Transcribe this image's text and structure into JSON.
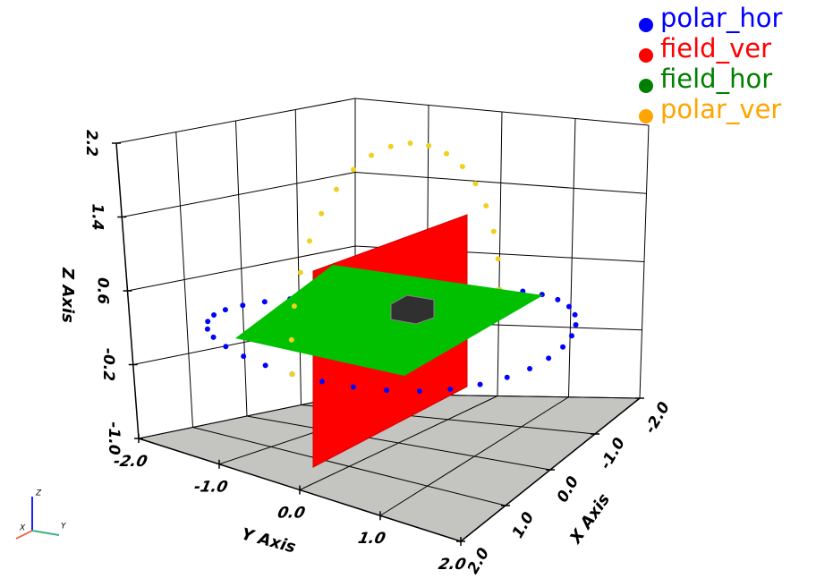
{
  "chart_data": {
    "type": "scatter3d",
    "xlabel": "X Axis",
    "ylabel": "Y Axis",
    "zlabel": "Z Axis",
    "xlim": [
      -2,
      2
    ],
    "ylim": [
      -2,
      2
    ],
    "zlim": [
      -1,
      2.2
    ],
    "xticks": [
      {
        "value": -2,
        "label": "-2.0"
      },
      {
        "value": -1,
        "label": "-1.0"
      },
      {
        "value": 0,
        "label": "0.0"
      },
      {
        "value": 1,
        "label": "1.0"
      },
      {
        "value": 2,
        "label": "2.0"
      }
    ],
    "yticks": [
      {
        "value": -2,
        "label": "-2.0"
      },
      {
        "value": -1,
        "label": "-1.0"
      },
      {
        "value": 0,
        "label": "0.0"
      },
      {
        "value": 1,
        "label": "1.0"
      },
      {
        "value": 2,
        "label": "2.0"
      }
    ],
    "zticks": [
      {
        "value": -1,
        "label": "-1.0"
      },
      {
        "value": -0.2,
        "label": "-0.2"
      },
      0.6,
      1.4,
      2.2
    ],
    "grid": true,
    "legend": "upper right",
    "orientation_labels": [
      "X",
      "Y",
      "Z"
    ],
    "series": [
      {
        "name": "polar_hor",
        "color": "#0000ff",
        "marker_color": "#0000ff",
        "x": [
          2,
          1.97,
          1.88,
          1.73,
          1.53,
          1.29,
          1,
          0.68,
          0.35,
          0,
          -0.35,
          -0.68,
          -1,
          -1.29,
          -1.53,
          -1.73,
          -1.88,
          -1.97,
          -2,
          -1.97,
          -1.88,
          -1.73,
          -1.53,
          -1.29,
          -1,
          -0.68,
          -0.35,
          0,
          0.35,
          0.68,
          1,
          1.29,
          1.53,
          1.73,
          1.88,
          1.97
        ],
        "y": [
          0,
          0.35,
          0.68,
          1,
          1.29,
          1.53,
          1.73,
          1.88,
          1.97,
          2,
          1.97,
          1.88,
          1.73,
          1.53,
          1.29,
          1,
          0.68,
          0.35,
          0,
          -0.35,
          -0.68,
          -1,
          -1.29,
          -1.53,
          -1.73,
          -1.88,
          -1.97,
          -2,
          -1.97,
          -1.88,
          -1.73,
          -1.53,
          -1.29,
          -1,
          -0.68,
          -0.35
        ],
        "z": [
          0.2,
          0.2,
          0.2,
          0.2,
          0.2,
          0.2,
          0.2,
          0.2,
          0.2,
          0.2,
          0.2,
          0.2,
          0.2,
          0.2,
          0.2,
          0.2,
          0.2,
          0.2,
          0.2,
          0.2,
          0.2,
          0.2,
          0.2,
          0.2,
          0.2,
          0.2,
          0.2,
          0.2,
          0.2,
          0.2,
          0.2,
          0.2,
          0.2,
          0.2,
          0.2,
          0.2
        ]
      },
      {
        "name": "field_ver",
        "color": "#ff0000"
      },
      {
        "name": "field_hor",
        "color": "#008000"
      },
      {
        "name": "polar_ver",
        "color": "#ffa500",
        "marker_color": "#f0d020",
        "x": [
          2,
          1.97,
          1.88,
          1.73,
          1.53,
          1.29,
          1,
          0.68,
          0.35,
          0,
          -0.35,
          -0.68,
          -1,
          -1.29,
          -1.53,
          -1.73,
          -1.88,
          -1.97,
          -2
        ],
        "y": [
          0,
          0,
          0,
          0,
          0,
          0,
          0,
          0,
          0,
          0,
          0,
          0,
          0,
          0,
          0,
          0,
          0,
          0,
          0
        ],
        "z": [
          0.2,
          0.55,
          0.88,
          1.2,
          1.49,
          1.73,
          1.93,
          2.08,
          2.17,
          2.2,
          2.17,
          2.08,
          1.93,
          1.73,
          1.49,
          1.2,
          0.88,
          0.55,
          0.2
        ]
      }
    ]
  }
}
